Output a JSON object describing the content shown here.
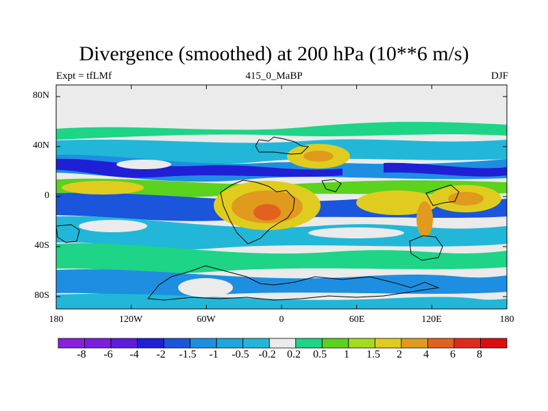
{
  "chart_data": {
    "type": "heatmap",
    "title": "Divergence (smoothed) at 200 hPa (10**6 m/s)",
    "subtitle_left": "Expt = tfLMf",
    "subtitle_center": "415_0_MaBP",
    "subtitle_right": "DJF",
    "x_ticks": [
      "180",
      "120W",
      "60W",
      "0",
      "60E",
      "120E",
      "180"
    ],
    "y_ticks": [
      "80N",
      "40N",
      "0",
      "40S",
      "80S"
    ],
    "xlim": [
      -180,
      180
    ],
    "ylim": [
      -90,
      90
    ],
    "legend": {
      "colors": [
        "#8a1fe0",
        "#7a1ee0",
        "#5f1cdc",
        "#1f1fd6",
        "#1a55dc",
        "#1e8fe0",
        "#1ea6dc",
        "#22b7d8",
        "#ebebeb",
        "#1ed486",
        "#5ad21e",
        "#a6da1e",
        "#e0cc1e",
        "#e09a1e",
        "#e0621e",
        "#e02a1e",
        "#dc0e0e"
      ],
      "labels": [
        "-8",
        "-6",
        "-4",
        "-2",
        "-1.5",
        "-1",
        "-0.5",
        "-0.2",
        "0.2",
        "0.5",
        "1",
        "1.5",
        "2",
        "4",
        "6",
        "8"
      ]
    }
  }
}
